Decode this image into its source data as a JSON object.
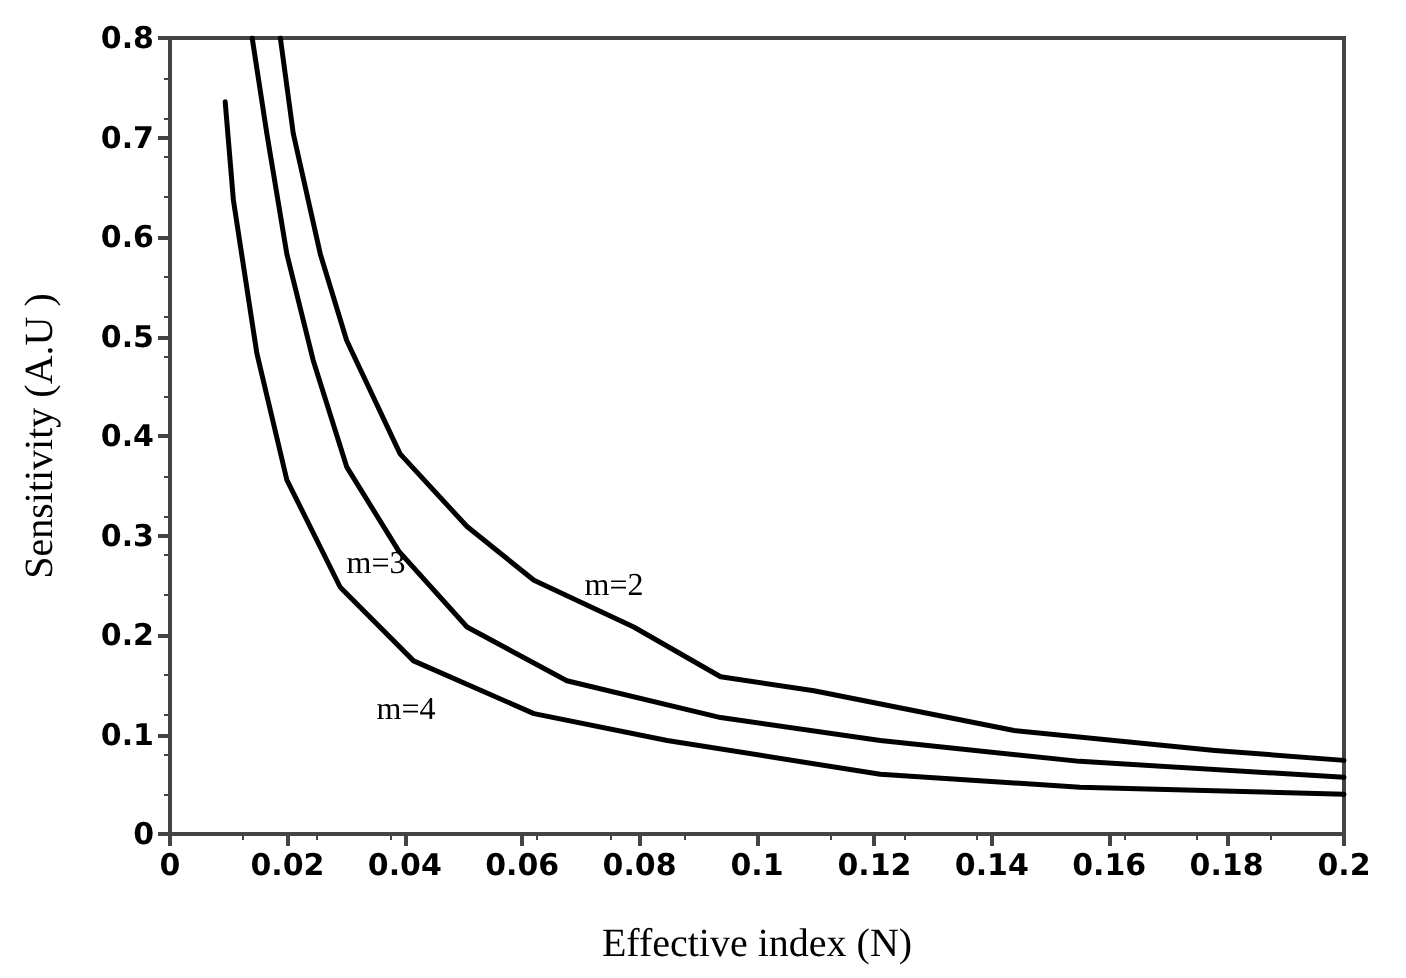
{
  "chart_data": {
    "type": "line",
    "xlabel": "Effective index (N)",
    "ylabel": "Sensitivity (A.U )",
    "xlim": [
      0,
      0.2
    ],
    "ylim": [
      0,
      0.8
    ],
    "xticks": [
      0,
      0.02,
      0.04,
      0.06,
      0.08,
      0.1,
      0.12,
      0.14,
      0.16,
      0.18,
      0.2
    ],
    "yticks": [
      0,
      0.1,
      0.2,
      0.3,
      0.4,
      0.5,
      0.6,
      0.7,
      0.8
    ],
    "grid": false,
    "marker": "none",
    "line_style": "solid",
    "series": [
      {
        "color": "#000000",
        "x": [
          0.0188,
          0.021,
          0.0256,
          0.0301,
          0.0392,
          0.0506,
          0.062,
          0.079,
          0.0938,
          0.1097,
          0.1438,
          0.178,
          0.2
        ],
        "values": [
          0.8,
          0.704,
          0.583,
          0.496,
          0.382,
          0.309,
          0.255,
          0.208,
          0.158,
          0.144,
          0.104,
          0.084,
          0.074
        ]
      },
      {
        "color": "#000000",
        "x": [
          0.014,
          0.0165,
          0.0199,
          0.0244,
          0.0301,
          0.039,
          0.0506,
          0.0676,
          0.0938,
          0.121,
          0.155,
          0.2
        ],
        "values": [
          0.8,
          0.704,
          0.583,
          0.476,
          0.369,
          0.284,
          0.208,
          0.154,
          0.117,
          0.094,
          0.073,
          0.057
        ]
      },
      {
        "color": "#000000",
        "x": [
          0.0094,
          0.0108,
          0.0148,
          0.0199,
          0.029,
          0.0415,
          0.062,
          0.0847,
          0.121,
          0.155,
          0.2
        ],
        "values": [
          0.736,
          0.637,
          0.483,
          0.356,
          0.248,
          0.174,
          0.121,
          0.094,
          0.06,
          0.047,
          0.04
        ]
      }
    ],
    "annotations": [
      "m=2",
      "m=3",
      "m=4"
    ]
  }
}
